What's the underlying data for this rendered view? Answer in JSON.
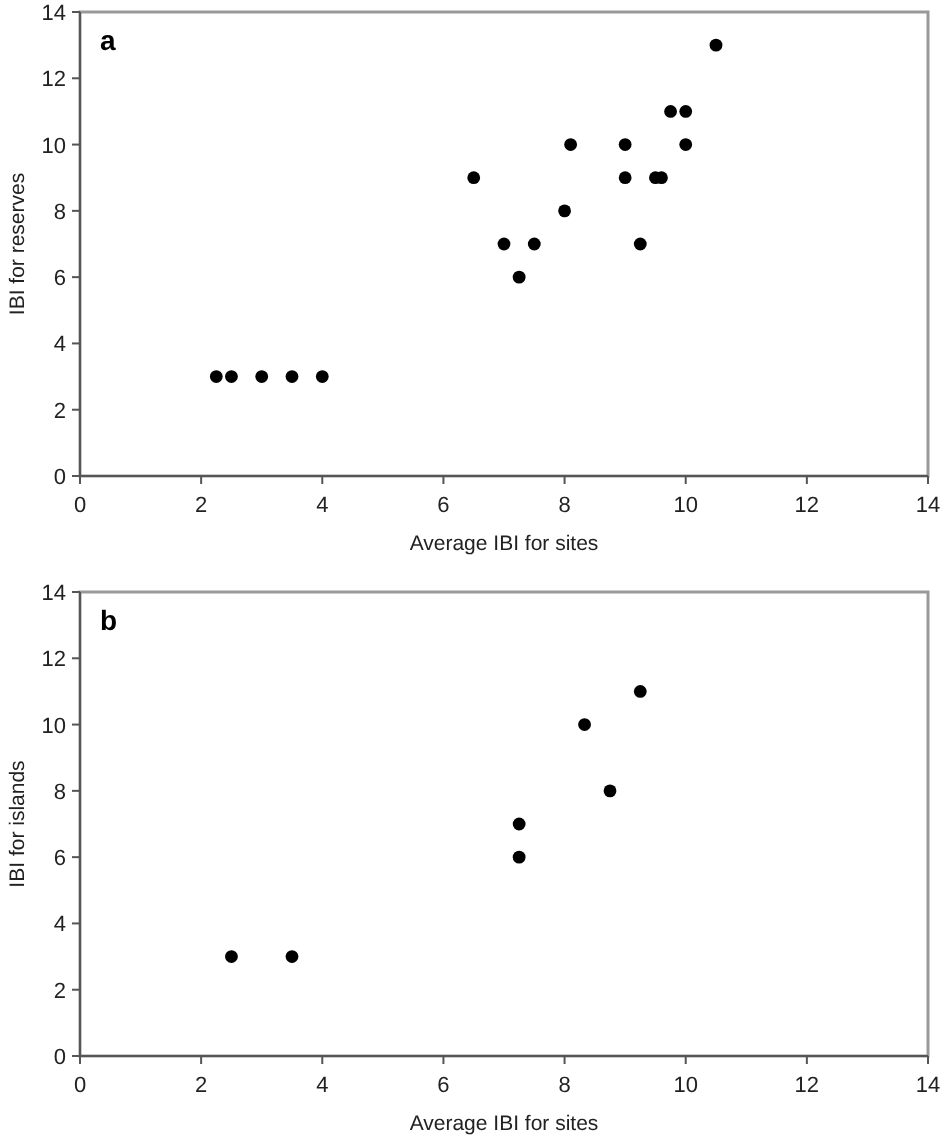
{
  "chart_data": [
    {
      "type": "scatter",
      "annotations": [
        "a"
      ],
      "xlabel": "Average IBI for sites",
      "ylabel": "IBI for reserves",
      "xlim": [
        0,
        14
      ],
      "ylim": [
        0,
        14
      ],
      "xticks": [
        0,
        2,
        4,
        6,
        8,
        10,
        12,
        14
      ],
      "yticks": [
        0,
        2,
        4,
        6,
        8,
        10,
        12,
        14
      ],
      "grid": false,
      "marker": "circle",
      "series": [
        {
          "color": "#000000",
          "x": [
            2.25,
            2.5,
            3,
            3.5,
            4,
            6.5,
            7,
            7.25,
            7.5,
            8,
            8.1,
            9,
            9,
            9.25,
            9.5,
            9.6,
            9.75,
            10,
            10,
            10.5
          ],
          "values": [
            3,
            3,
            3,
            3,
            3,
            9,
            7,
            6,
            7,
            8,
            10,
            10,
            9,
            7,
            9,
            9,
            11,
            11,
            10,
            13
          ]
        }
      ]
    },
    {
      "type": "scatter",
      "annotations": [
        "b"
      ],
      "xlabel": "Average IBI for sites",
      "ylabel": "IBI for islands",
      "xlim": [
        0,
        14
      ],
      "ylim": [
        0,
        14
      ],
      "xticks": [
        0,
        2,
        4,
        6,
        8,
        10,
        12,
        14
      ],
      "yticks": [
        0,
        2,
        4,
        6,
        8,
        10,
        12,
        14
      ],
      "grid": false,
      "marker": "circle",
      "series": [
        {
          "color": "#000000",
          "x": [
            2.5,
            3.5,
            7.25,
            7.25,
            8.33,
            8.75,
            9.25
          ],
          "values": [
            3,
            3,
            7,
            6,
            10,
            8,
            11
          ]
        }
      ]
    }
  ]
}
